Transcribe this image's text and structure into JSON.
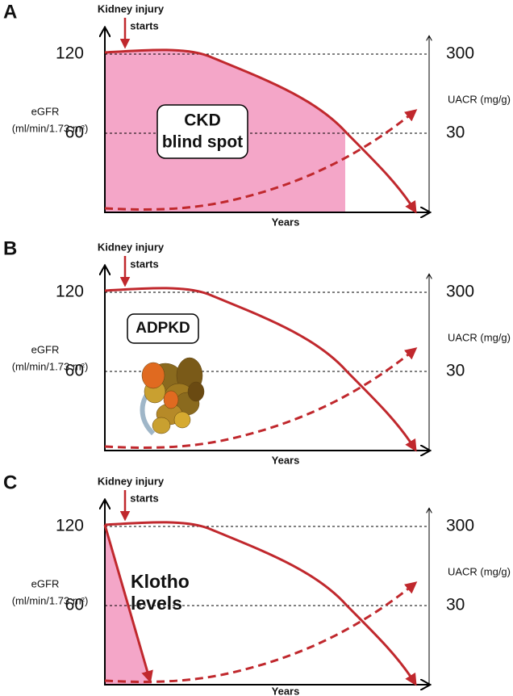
{
  "panels": [
    {
      "letter": "A",
      "injury": [
        "Kidney injury",
        "starts"
      ],
      "left_ticks": [
        "120",
        "60"
      ],
      "right_ticks": [
        "300",
        "30"
      ],
      "left_label": [
        "eGFR",
        "(ml/min/1.73 m²)"
      ],
      "right_label": "UACR (mg/g)",
      "x_label": "Years",
      "callout": [
        "CKD",
        "blind spot"
      ]
    },
    {
      "letter": "B",
      "injury": [
        "Kidney injury",
        "starts"
      ],
      "left_ticks": [
        "120",
        "60"
      ],
      "right_ticks": [
        "300",
        "30"
      ],
      "left_label": [
        "eGFR",
        "(ml/min/1.73 m²)"
      ],
      "right_label": "UACR (mg/g)",
      "x_label": "Years",
      "callout": [
        "ADPKD"
      ]
    },
    {
      "letter": "C",
      "injury": [
        "Kidney injury",
        "starts"
      ],
      "left_ticks": [
        "120",
        "60"
      ],
      "right_ticks": [
        "300",
        "30"
      ],
      "left_label": [
        "eGFR",
        "(ml/min/1.73 m²)"
      ],
      "right_label": "UACR (mg/g)",
      "x_label": "Years",
      "callout": [
        "Klotho",
        "levels"
      ]
    }
  ]
}
